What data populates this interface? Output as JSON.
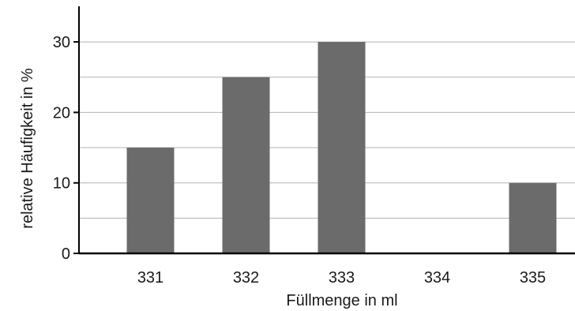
{
  "chart_data": {
    "type": "bar",
    "categories": [
      "331",
      "332",
      "333",
      "334",
      "335"
    ],
    "values": [
      15,
      25,
      30,
      0,
      10
    ],
    "xlabel": "Füllmenge in ml",
    "ylabel": "relative Häufigkeit in %",
    "ylim": [
      0,
      35
    ],
    "yticks": [
      "0",
      "10",
      "20",
      "30"
    ],
    "minor_gridlines": [
      5,
      15,
      25
    ],
    "grid": true,
    "bar_color": "#6b6b6b",
    "grid_color": "#b3b3b3"
  }
}
